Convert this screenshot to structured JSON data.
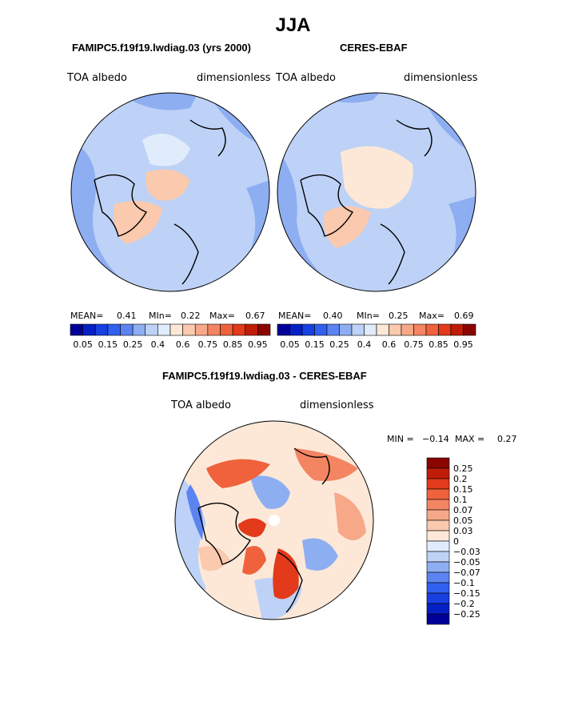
{
  "page_title": "JJA",
  "palette": [
    "#000099",
    "#0520c4",
    "#1840e0",
    "#3060ee",
    "#5c84f0",
    "#8eaef2",
    "#bdd2f6",
    "#e0ecfb",
    "#fde8d8",
    "#fac9ae",
    "#f7a888",
    "#f48562",
    "#ef623c",
    "#e23a1a",
    "#c01d08",
    "#8a0500"
  ],
  "chart_data": [
    {
      "type": "heatmap",
      "projection": "polar-stereographic-north",
      "title": "FAMIPC5.f19f19.lwdiag.03 (yrs 2000)",
      "left_label": "TOA  albedo",
      "right_label": "dimensionless",
      "stats": {
        "mean_label": "MEAN=",
        "mean": "0.41",
        "min_label": "MIn=",
        "min": "0.22",
        "max_label": "Max=",
        "max": "0.67"
      },
      "colorbar_ticks": [
        "0.05",
        "0.15",
        "0.25",
        "0.4",
        "0.6",
        "0.75",
        "0.85",
        "0.95"
      ]
    },
    {
      "type": "heatmap",
      "projection": "polar-stereographic-north",
      "title": "CERES-EBAF",
      "left_label": "TOA  albedo",
      "right_label": "dimensionless",
      "stats": {
        "mean_label": "MEAN=",
        "mean": "0.40",
        "min_label": "MIn=",
        "min": "0.25",
        "max_label": "Max=",
        "max": "0.69"
      },
      "colorbar_ticks": [
        "0.05",
        "0.15",
        "0.25",
        "0.4",
        "0.6",
        "0.75",
        "0.85",
        "0.95"
      ]
    },
    {
      "type": "heatmap",
      "projection": "polar-stereographic-north",
      "title": "FAMIPC5.f19f19.lwdiag.03 - CERES-EBAF",
      "left_label": "TOA  albedo",
      "right_label": "dimensionless",
      "stats": {
        "min_label": "MIN =",
        "min": "−0.14",
        "max_label": "MAX =",
        "max": "0.27"
      },
      "colorbar_levels": [
        "0.25",
        "0.2",
        "0.15",
        "0.1",
        "0.07",
        "0.05",
        "0.03",
        "0",
        "−0.03",
        "−0.05",
        "−0.07",
        "−0.1",
        "−0.15",
        "−0.2",
        "−0.25"
      ],
      "colorbar_colors": [
        "#8a0500",
        "#c01d08",
        "#e23a1a",
        "#ef623c",
        "#f48562",
        "#f7a888",
        "#fac9ae",
        "#fde8d8",
        "#e0ecfb",
        "#bdd2f6",
        "#8eaef2",
        "#5c84f0",
        "#3060ee",
        "#1840e0",
        "#0520c4",
        "#000099"
      ]
    }
  ]
}
